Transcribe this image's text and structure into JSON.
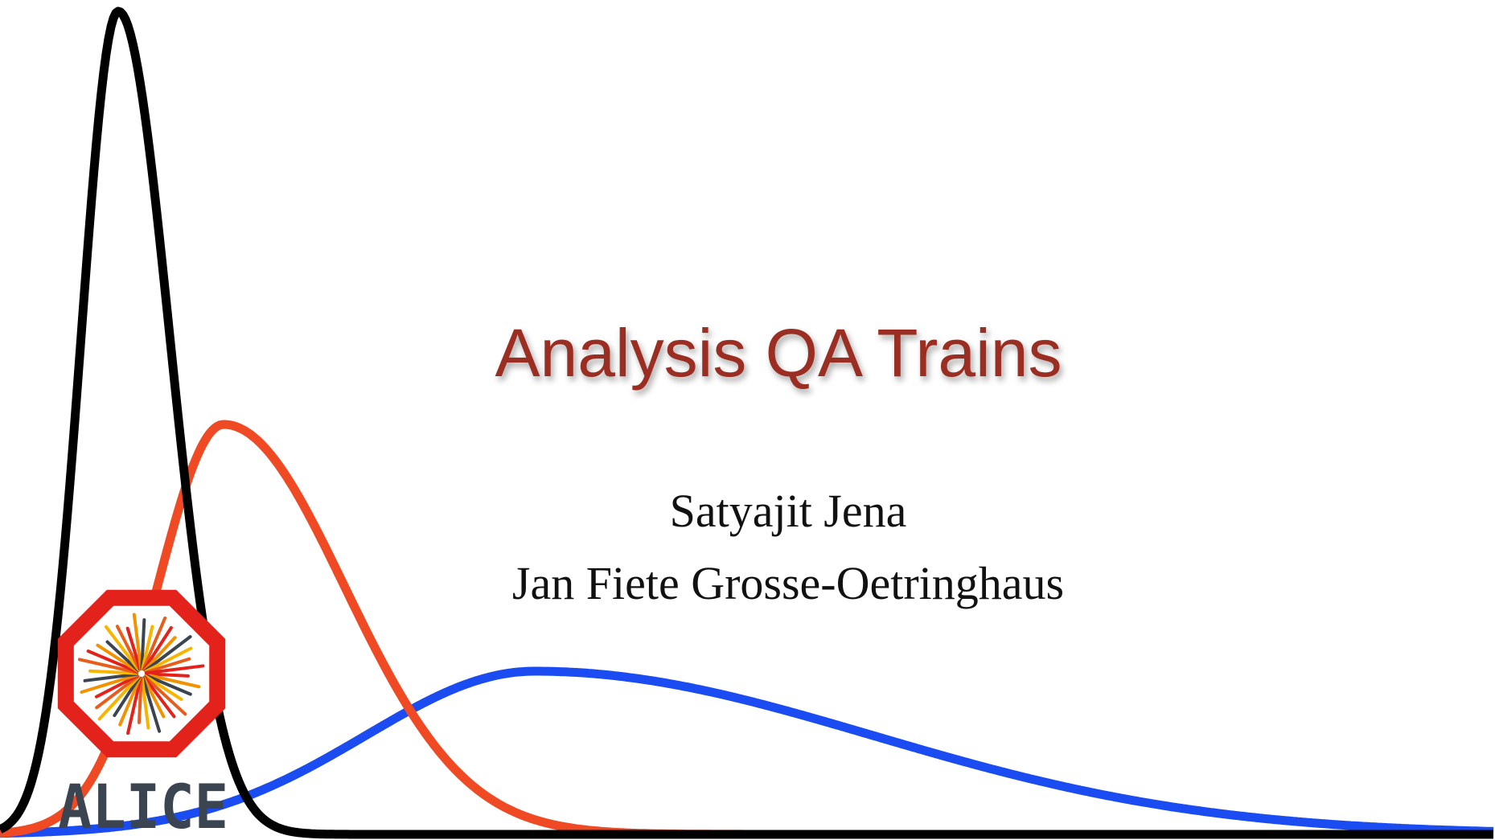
{
  "title": "Analysis QA Trains",
  "authors": [
    "Satyajit Jena",
    "Jan Fiete Grosse-Oetringhaus"
  ],
  "logo": {
    "text": "ALICE"
  }
}
